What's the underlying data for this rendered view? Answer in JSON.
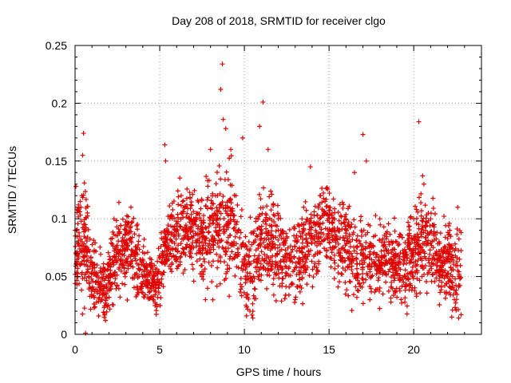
{
  "chart_data": {
    "type": "scatter",
    "title": "Day 208 of 2018, SRMTID for receiver clgo",
    "xlabel": "GPS time / hours",
    "ylabel": "SRMTID / TECUs",
    "xlim": [
      0,
      24
    ],
    "ylim": [
      0,
      0.25
    ],
    "xticks": [
      0,
      5,
      10,
      15,
      20
    ],
    "xtick_labels": [
      "0",
      "5",
      "10",
      "15",
      "20"
    ],
    "yticks": [
      0,
      0.05,
      0.1,
      0.15,
      0.2,
      0.25
    ],
    "ytick_labels": [
      "0",
      "0.05",
      "0.1",
      "0.15",
      "0.2",
      "0.25"
    ],
    "grid": true,
    "marker": "+",
    "color": "#e00000",
    "series": [
      {
        "name": "SRMTID",
        "note": "dense cloud of ~3000 '+' samples spanning 0-22.8 h; values below are representative points read from the plot",
        "points": [
          [
            0.0,
            0.09
          ],
          [
            0.05,
            0.128
          ],
          [
            0.1,
            0.05
          ],
          [
            0.15,
            0.07
          ],
          [
            0.2,
            0.112
          ],
          [
            0.25,
            0.085
          ],
          [
            0.3,
            0.06
          ],
          [
            0.35,
            0.11
          ],
          [
            0.4,
            0.12
          ],
          [
            0.45,
            0.155
          ],
          [
            0.5,
            0.174
          ],
          [
            0.55,
            0.131
          ],
          [
            0.6,
            0.095
          ],
          [
            0.62,
            0.001
          ],
          [
            0.65,
            0.06
          ],
          [
            0.8,
            0.05
          ],
          [
            1.0,
            0.04
          ],
          [
            1.3,
            0.06
          ],
          [
            1.6,
            0.03
          ],
          [
            1.8,
            0.012
          ],
          [
            2.0,
            0.05
          ],
          [
            2.3,
            0.1
          ],
          [
            2.6,
            0.07
          ],
          [
            3.0,
            0.09
          ],
          [
            3.3,
            0.11
          ],
          [
            3.6,
            0.07
          ],
          [
            4.0,
            0.05
          ],
          [
            4.3,
            0.04
          ],
          [
            4.6,
            0.03
          ],
          [
            5.0,
            0.045
          ],
          [
            5.3,
            0.164
          ],
          [
            5.35,
            0.15
          ],
          [
            5.6,
            0.1
          ],
          [
            6.0,
            0.09
          ],
          [
            6.5,
            0.11
          ],
          [
            7.0,
            0.1
          ],
          [
            7.5,
            0.08
          ],
          [
            7.7,
            0.03
          ],
          [
            8.0,
            0.16
          ],
          [
            8.3,
            0.12
          ],
          [
            8.6,
            0.212
          ],
          [
            8.7,
            0.234
          ],
          [
            8.75,
            0.186
          ],
          [
            8.9,
            0.178
          ],
          [
            9.2,
            0.16
          ],
          [
            9.5,
            0.12
          ],
          [
            9.9,
            0.17
          ],
          [
            10.1,
            0.025
          ],
          [
            10.5,
            0.02
          ],
          [
            10.9,
            0.18
          ],
          [
            11.1,
            0.201
          ],
          [
            11.4,
            0.16
          ],
          [
            12.0,
            0.1
          ],
          [
            12.5,
            0.07
          ],
          [
            13.0,
            0.03
          ],
          [
            13.5,
            0.11
          ],
          [
            13.9,
            0.145
          ],
          [
            14.5,
            0.12
          ],
          [
            15.0,
            0.11
          ],
          [
            15.3,
            0.1
          ],
          [
            16.0,
            0.1
          ],
          [
            16.5,
            0.14
          ],
          [
            17.0,
            0.173
          ],
          [
            17.2,
            0.15
          ],
          [
            17.5,
            0.05
          ],
          [
            18.0,
            0.1
          ],
          [
            18.5,
            0.07
          ],
          [
            19.0,
            0.08
          ],
          [
            19.5,
            0.05
          ],
          [
            20.0,
            0.1
          ],
          [
            20.3,
            0.184
          ],
          [
            20.6,
            0.13
          ],
          [
            21.0,
            0.1
          ],
          [
            21.5,
            0.08
          ],
          [
            22.0,
            0.05
          ],
          [
            22.4,
            0.03
          ],
          [
            22.6,
            0.11
          ],
          [
            22.8,
            0.017
          ]
        ]
      }
    ]
  }
}
